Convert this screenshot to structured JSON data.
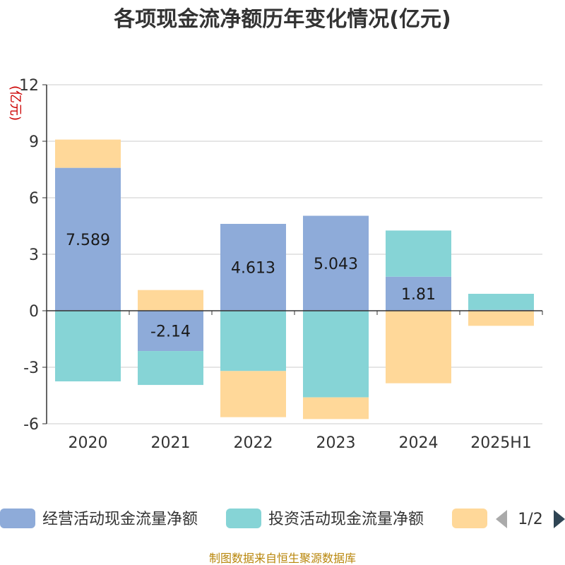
{
  "chart_data": {
    "type": "bar",
    "stacked": true,
    "title": "各项现金流净额历年变化情况(亿元)",
    "ylabel": "(亿元)",
    "categories": [
      "2020",
      "2021",
      "2022",
      "2023",
      "2024",
      "2025H1"
    ],
    "ylim": [
      -6,
      12
    ],
    "yticks": [
      12,
      9,
      6,
      3,
      0,
      -3,
      -6
    ],
    "grid": true,
    "legend_position": "bottom",
    "series": [
      {
        "name": "经营活动现金流量净额",
        "color": "#8eabd9",
        "values": [
          7.589,
          -2.14,
          4.613,
          5.043,
          1.81,
          0.05
        ],
        "labels": [
          "7.589",
          "-2.14",
          "4.613",
          "5.043",
          "1.81",
          ""
        ]
      },
      {
        "name": "投资活动现金流量净额",
        "color": "#86d4d6",
        "values": [
          -3.75,
          -1.8,
          -3.2,
          -4.6,
          2.45,
          0.85
        ],
        "labels": [
          "",
          "",
          "",
          "",
          "",
          ""
        ]
      },
      {
        "name": "",
        "color": "#ffd899",
        "values": [
          1.5,
          1.1,
          -2.45,
          -1.15,
          -3.85,
          -0.8
        ],
        "labels": [
          "",
          "",
          "",
          "",
          "",
          ""
        ]
      }
    ]
  },
  "legend": {
    "pager": "1/2"
  },
  "footer": {
    "source": "制图数据来自恒生聚源数据库"
  }
}
